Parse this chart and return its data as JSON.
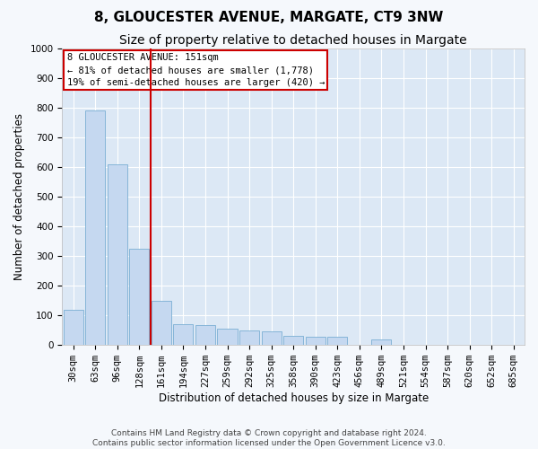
{
  "title": "8, GLOUCESTER AVENUE, MARGATE, CT9 3NW",
  "subtitle": "Size of property relative to detached houses in Margate",
  "xlabel": "Distribution of detached houses by size in Margate",
  "ylabel": "Number of detached properties",
  "bar_color": "#c5d8f0",
  "bar_edge_color": "#7aafd4",
  "background_color": "#dce8f5",
  "grid_color": "#ffffff",
  "annotation_line_color": "#cc0000",
  "annotation_box_color": "#cc0000",
  "property_sqm": 151,
  "annotation_text_line1": "8 GLOUCESTER AVENUE: 151sqm",
  "annotation_text_line2": "← 81% of detached houses are smaller (1,778)",
  "annotation_text_line3": "19% of semi-detached houses are larger (420) →",
  "footer_line1": "Contains HM Land Registry data © Crown copyright and database right 2024.",
  "footer_line2": "Contains public sector information licensed under the Open Government Licence v3.0.",
  "bin_labels": [
    "30sqm",
    "63sqm",
    "96sqm",
    "128sqm",
    "161sqm",
    "194sqm",
    "227sqm",
    "259sqm",
    "292sqm",
    "325sqm",
    "358sqm",
    "390sqm",
    "423sqm",
    "456sqm",
    "489sqm",
    "521sqm",
    "554sqm",
    "587sqm",
    "620sqm",
    "652sqm",
    "685sqm"
  ],
  "bar_heights": [
    120,
    790,
    610,
    325,
    150,
    70,
    68,
    55,
    50,
    45,
    30,
    28,
    28,
    0,
    20,
    0,
    0,
    0,
    0,
    0,
    0
  ],
  "ylim": [
    0,
    1000
  ],
  "yticks": [
    0,
    100,
    200,
    300,
    400,
    500,
    600,
    700,
    800,
    900,
    1000
  ],
  "title_fontsize": 11,
  "subtitle_fontsize": 10,
  "xlabel_fontsize": 8.5,
  "ylabel_fontsize": 8.5,
  "tick_fontsize": 7.5,
  "annotation_fontsize": 7.5,
  "footer_fontsize": 6.5,
  "fig_bg_color": "#f5f8fc"
}
